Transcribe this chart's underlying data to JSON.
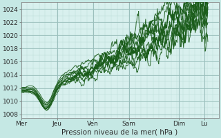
{
  "xlabel": "Pression niveau de la mer( hPa )",
  "xlim": [
    0,
    5.5
  ],
  "ylim": [
    1007.5,
    1025
  ],
  "yticks": [
    1008,
    1010,
    1012,
    1014,
    1016,
    1018,
    1020,
    1022,
    1024
  ],
  "xtick_labels": [
    "Mer",
    "Jeu",
    "Ven",
    "Sam",
    "Dim",
    "Lu"
  ],
  "xtick_positions": [
    0.0,
    1.0,
    2.0,
    3.0,
    4.4,
    5.1
  ],
  "bg_color": "#c5e8e4",
  "plot_bg": "#d8f0ee",
  "grid_color_major": "#9bbfbc",
  "grid_color_minor": "#b8d8d5",
  "line_color": "#1a5c1a",
  "n_lines": 9
}
